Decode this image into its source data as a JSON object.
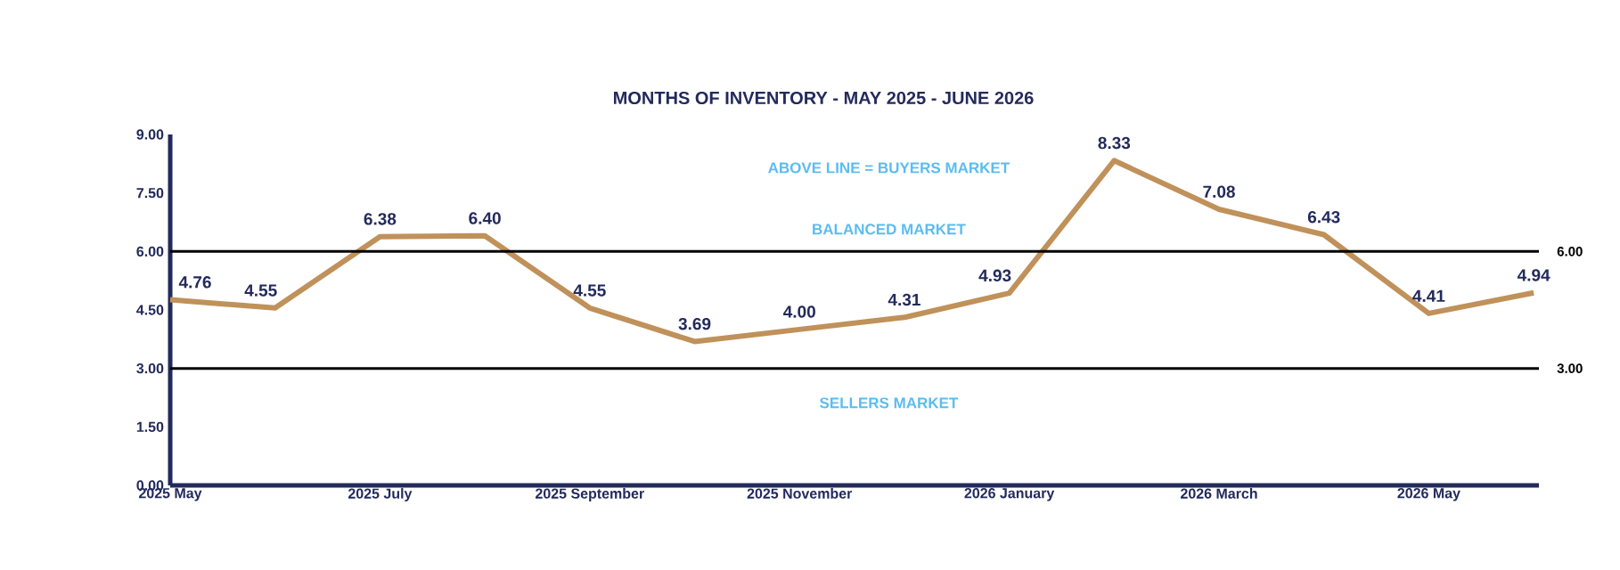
{
  "chart_data": {
    "type": "line",
    "title": "MONTHS OF INVENTORY - MAY 2025 - JUNE 2026",
    "categories": [
      "2025 May",
      null,
      "2025 July",
      null,
      "2025 September",
      null,
      "2025 November",
      null,
      "2026 January",
      null,
      "2026 March",
      null,
      "2026 May",
      null
    ],
    "values": [
      4.76,
      4.55,
      6.38,
      6.4,
      4.55,
      3.69,
      4.0,
      4.31,
      4.93,
      8.33,
      7.08,
      6.43,
      4.41,
      4.94
    ],
    "value_labels": [
      "4.76",
      "4.55",
      "6.38",
      "6.40",
      "4.55",
      "3.69",
      "4.00",
      "4.31",
      "4.93",
      "8.33",
      "7.08",
      "6.43",
      "4.41",
      "4.94"
    ],
    "color": "#c0915a",
    "ylim": [
      0,
      9
    ],
    "yticks": [
      {
        "value": 0,
        "label": "0.00"
      },
      {
        "value": 1.5,
        "label": "1.50"
      },
      {
        "value": 3,
        "label": "3.00"
      },
      {
        "value": 4.5,
        "label": "4.50"
      },
      {
        "value": 6,
        "label": "6.00"
      },
      {
        "value": 7.5,
        "label": "7.50"
      },
      {
        "value": 9,
        "label": "9.00"
      }
    ],
    "ref_lines": [
      {
        "axis": "y",
        "value": 6,
        "label": "6.00",
        "color": "#000000"
      },
      {
        "axis": "y",
        "value": 3,
        "label": "3.00",
        "color": "#000000"
      }
    ],
    "annotations": [
      "ABOVE LINE = BUYERS MARKET",
      "BALANCED MARKET",
      "SELLERS MARKET"
    ],
    "marker": "none",
    "line_style": "solid",
    "grid": false
  }
}
